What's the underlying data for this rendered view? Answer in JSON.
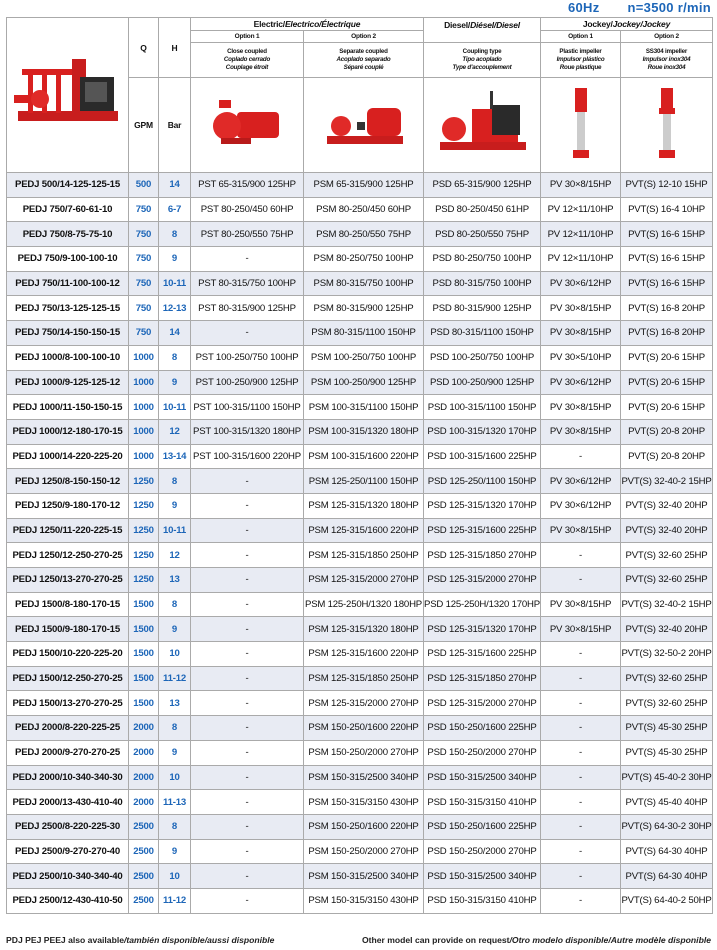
{
  "header_info": {
    "frequency": "60Hz",
    "speed": "n=3500 r/min"
  },
  "columns": {
    "q": "Q",
    "h": "H",
    "q_unit": "GPM",
    "h_unit": "Bar",
    "electric": {
      "en": "Electric/",
      "es_fr": "Electrico/Électrique",
      "option1": "Option 1",
      "option2": "Option 2",
      "opt1_desc": [
        "Close coupled",
        "Coplado cerrado",
        "Couplage étroit"
      ],
      "opt2_desc": [
        "Separate coupled",
        "Acoplado separado",
        "Séparé couplé"
      ]
    },
    "diesel": {
      "en": "Diesel/",
      "es_fr": "Diésel/Diesel",
      "desc": [
        "Coupling type",
        "Tipo acoplado",
        "Type d'accouplement"
      ]
    },
    "jockey": {
      "en": "Jockey/",
      "es_fr": "Jockey/Jockey",
      "option1": "Option 1",
      "option2": "Option 2",
      "opt1_desc": [
        "Plastic impeller",
        "Impulsor plástico",
        "Roue plastique"
      ],
      "opt2_desc": [
        "SS304 impeller",
        "Impulsor inox304",
        "Roue inox304"
      ]
    }
  },
  "colors": {
    "accent_blue": "#1d66b8",
    "row_shade": "#e8ebf3",
    "pump_red": "#d8201f"
  },
  "rows": [
    [
      "PEDJ 500/14-125-125-15",
      "500",
      "14",
      "PST 65-315/900 125HP",
      "PSM 65-315/900 125HP",
      "PSD 65-315/900 125HP",
      "PV 30×8/15HP",
      "PVT(S) 12-10 15HP"
    ],
    [
      "PEDJ 750/7-60-61-10",
      "750",
      "6-7",
      "PST 80-250/450 60HP",
      "PSM 80-250/450 60HP",
      "PSD 80-250/450 61HP",
      "PV 12×11/10HP",
      "PVT(S) 16-4 10HP"
    ],
    [
      "PEDJ 750/8-75-75-10",
      "750",
      "8",
      "PST 80-250/550 75HP",
      "PSM 80-250/550 75HP",
      "PSD 80-250/550 75HP",
      "PV 12×11/10HP",
      "PVT(S) 16-6 15HP"
    ],
    [
      "PEDJ 750/9-100-100-10",
      "750",
      "9",
      "-",
      "PSM 80-250/750 100HP",
      "PSD 80-250/750 100HP",
      "PV 12×11/10HP",
      "PVT(S) 16-6 15HP"
    ],
    [
      "PEDJ 750/11-100-100-12",
      "750",
      "10-11",
      "PST 80-315/750 100HP",
      "PSM 80-315/750 100HP",
      "PSD 80-315/750 100HP",
      "PV 30×6/12HP",
      "PVT(S) 16-6 15HP"
    ],
    [
      "PEDJ 750/13-125-125-15",
      "750",
      "12-13",
      "PST 80-315/900 125HP",
      "PSM 80-315/900 125HP",
      "PSD 80-315/900 125HP",
      "PV 30×8/15HP",
      "PVT(S) 16-8 20HP"
    ],
    [
      "PEDJ 750/14-150-150-15",
      "750",
      "14",
      "-",
      "PSM 80-315/1100 150HP",
      "PSD 80-315/1100 150HP",
      "PV 30×8/15HP",
      "PVT(S) 16-8 20HP"
    ],
    [
      "PEDJ 1000/8-100-100-10",
      "1000",
      "8",
      "PST 100-250/750 100HP",
      "PSM 100-250/750 100HP",
      "PSD 100-250/750 100HP",
      "PV 30×5/10HP",
      "PVT(S) 20-6 15HP"
    ],
    [
      "PEDJ 1000/9-125-125-12",
      "1000",
      "9",
      "PST 100-250/900 125HP",
      "PSM 100-250/900 125HP",
      "PSD 100-250/900 125HP",
      "PV 30×6/12HP",
      "PVT(S) 20-6 15HP"
    ],
    [
      "PEDJ 1000/11-150-150-15",
      "1000",
      "10-11",
      "PST 100-315/1100 150HP",
      "PSM 100-315/1100 150HP",
      "PSD 100-315/1100 150HP",
      "PV 30×8/15HP",
      "PVT(S) 20-6 15HP"
    ],
    [
      "PEDJ 1000/12-180-170-15",
      "1000",
      "12",
      "PST 100-315/1320 180HP",
      "PSM 100-315/1320 180HP",
      "PSD 100-315/1320 170HP",
      "PV 30×8/15HP",
      "PVT(S) 20-8 20HP"
    ],
    [
      "PEDJ 1000/14-220-225-20",
      "1000",
      "13-14",
      "PST 100-315/1600 220HP",
      "PSM 100-315/1600 220HP",
      "PSD 100-315/1600 225HP",
      "-",
      "PVT(S) 20-8 20HP"
    ],
    [
      "PEDJ 1250/8-150-150-12",
      "1250",
      "8",
      "-",
      "PSM 125-250/1100 150HP",
      "PSD 125-250/1100 150HP",
      "PV 30×6/12HP",
      "PVT(S) 32-40-2 15HP"
    ],
    [
      "PEDJ 1250/9-180-170-12",
      "1250",
      "9",
      "-",
      "PSM 125-315/1320 180HP",
      "PSD 125-315/1320 170HP",
      "PV 30×6/12HP",
      "PVT(S) 32-40 20HP"
    ],
    [
      "PEDJ 1250/11-220-225-15",
      "1250",
      "10-11",
      "-",
      "PSM 125-315/1600 220HP",
      "PSD 125-315/1600 225HP",
      "PV 30×8/15HP",
      "PVT(S) 32-40 20HP"
    ],
    [
      "PEDJ 1250/12-250-270-25",
      "1250",
      "12",
      "-",
      "PSM 125-315/1850 250HP",
      "PSD 125-315/1850 270HP",
      "-",
      "PVT(S) 32-60 25HP"
    ],
    [
      "PEDJ 1250/13-270-270-25",
      "1250",
      "13",
      "-",
      "PSM 125-315/2000 270HP",
      "PSD 125-315/2000 270HP",
      "-",
      "PVT(S) 32-60 25HP"
    ],
    [
      "PEDJ 1500/8-180-170-15",
      "1500",
      "8",
      "-",
      "PSM 125-250H/1320 180HP",
      "PSD 125-250H/1320 170HP",
      "PV 30×8/15HP",
      "PVT(S) 32-40-2 15HP"
    ],
    [
      "PEDJ 1500/9-180-170-15",
      "1500",
      "9",
      "-",
      "PSM 125-315/1320 180HP",
      "PSD 125-315/1320 170HP",
      "PV 30×8/15HP",
      "PVT(S) 32-40 20HP"
    ],
    [
      "PEDJ 1500/10-220-225-20",
      "1500",
      "10",
      "-",
      "PSM 125-315/1600 220HP",
      "PSD 125-315/1600 225HP",
      "-",
      "PVT(S) 32-50-2 20HP"
    ],
    [
      "PEDJ 1500/12-250-270-25",
      "1500",
      "11-12",
      "-",
      "PSM 125-315/1850 250HP",
      "PSD 125-315/1850 270HP",
      "-",
      "PVT(S) 32-60 25HP"
    ],
    [
      "PEDJ 1500/13-270-270-25",
      "1500",
      "13",
      "-",
      "PSM 125-315/2000 270HP",
      "PSD 125-315/2000 270HP",
      "-",
      "PVT(S) 32-60 25HP"
    ],
    [
      "PEDJ 2000/8-220-225-25",
      "2000",
      "8",
      "-",
      "PSM 150-250/1600 220HP",
      "PSD 150-250/1600 225HP",
      "-",
      "PVT(S) 45-30 25HP"
    ],
    [
      "PEDJ 2000/9-270-270-25",
      "2000",
      "9",
      "-",
      "PSM 150-250/2000 270HP",
      "PSD 150-250/2000 270HP",
      "-",
      "PVT(S) 45-30 25HP"
    ],
    [
      "PEDJ 2000/10-340-340-30",
      "2000",
      "10",
      "-",
      "PSM 150-315/2500 340HP",
      "PSD 150-315/2500 340HP",
      "-",
      "PVT(S) 45-40-2 30HP"
    ],
    [
      "PEDJ 2000/13-430-410-40",
      "2000",
      "11-13",
      "-",
      "PSM 150-315/3150 430HP",
      "PSD 150-315/3150 410HP",
      "-",
      "PVT(S) 45-40 40HP"
    ],
    [
      "PEDJ 2500/8-220-225-30",
      "2500",
      "8",
      "-",
      "PSM 150-250/1600 220HP",
      "PSD 150-250/1600 225HP",
      "-",
      "PVT(S) 64-30-2 30HP"
    ],
    [
      "PEDJ 2500/9-270-270-40",
      "2500",
      "9",
      "-",
      "PSM 150-250/2000 270HP",
      "PSD 150-250/2000 270HP",
      "-",
      "PVT(S) 64-30 40HP"
    ],
    [
      "PEDJ 2500/10-340-340-40",
      "2500",
      "10",
      "-",
      "PSM 150-315/2500 340HP",
      "PSD 150-315/2500 340HP",
      "-",
      "PVT(S) 64-30 40HP"
    ],
    [
      "PEDJ 2500/12-430-410-50",
      "2500",
      "11-12",
      "-",
      "PSM 150-315/3150 430HP",
      "PSD 150-315/3150 410HP",
      "-",
      "PVT(S) 64-40-2 50HP"
    ]
  ],
  "footer": {
    "left_en": "PDJ PEJ PEEJ also available",
    "left_es_fr": "/también disponible/aussi disponible",
    "right_en": "Other model can provide on request",
    "right_es_fr": "/Otro modelo disponible/Autre modèle disponible"
  }
}
